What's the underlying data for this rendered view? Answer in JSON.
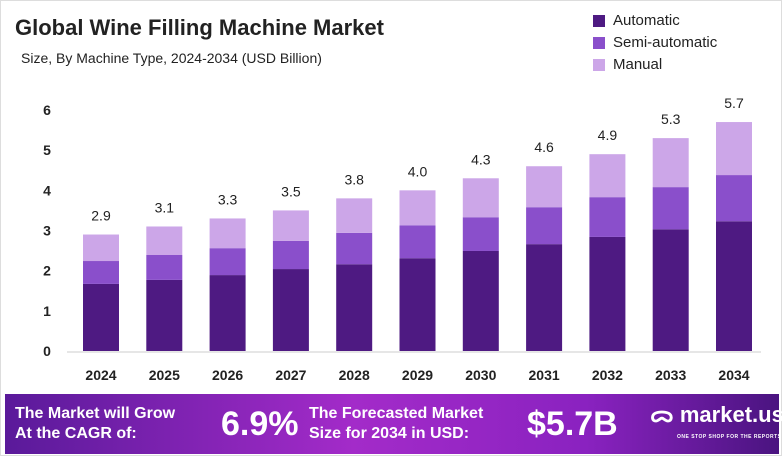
{
  "chart_data": {
    "type": "bar",
    "stacked": true,
    "title": "Global Wine Filling Machine Market",
    "subtitle": "Size, By Machine Type, 2024-2034 (USD Billion)",
    "categories": [
      "2024",
      "2025",
      "2026",
      "2027",
      "2028",
      "2029",
      "2030",
      "2031",
      "2032",
      "2033",
      "2034"
    ],
    "series": [
      {
        "name": "Automatic",
        "color": "#4e1a82",
        "values": [
          1.67,
          1.77,
          1.89,
          2.04,
          2.16,
          2.31,
          2.49,
          2.66,
          2.84,
          3.03,
          3.23
        ]
      },
      {
        "name": "Semi-automatic",
        "color": "#8a4fcb",
        "values": [
          0.57,
          0.62,
          0.67,
          0.7,
          0.78,
          0.82,
          0.84,
          0.92,
          0.99,
          1.05,
          1.15
        ]
      },
      {
        "name": "Manual",
        "color": "#cca6e8",
        "values": [
          0.66,
          0.71,
          0.74,
          0.76,
          0.86,
          0.87,
          0.97,
          1.02,
          1.07,
          1.22,
          1.32
        ]
      }
    ],
    "totals": [
      "2.9",
      "3.1",
      "3.3",
      "3.5",
      "3.8",
      "4.0",
      "4.3",
      "4.6",
      "4.9",
      "5.3",
      "5.7"
    ],
    "yticks": [
      "0",
      "1",
      "2",
      "3",
      "4",
      "5",
      "6"
    ],
    "ylim": [
      0,
      6
    ],
    "grid": false,
    "legend": "top-right"
  },
  "banner": {
    "cagr_text_1": "The Market will Grow",
    "cagr_text_2": "At the CAGR of:",
    "cagr_value": "6.9%",
    "forecast_text_1": "The Forecasted Market",
    "forecast_text_2": "Size for 2034 in USD:",
    "forecast_value": "$5.7B",
    "logo": "market.us",
    "logo_tagline": "ONE STOP SHOP FOR THE REPORTS"
  }
}
